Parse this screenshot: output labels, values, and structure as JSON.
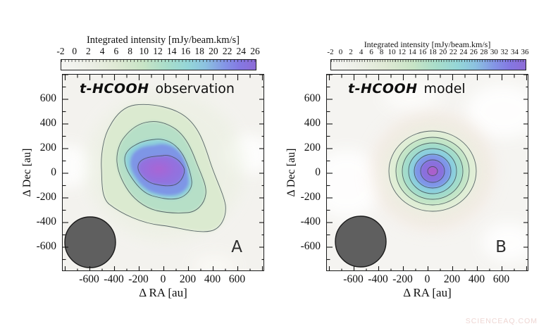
{
  "watermark": "SCIENCEAQ.COM",
  "chart_data": [
    {
      "type": "heatmap",
      "panel_label": "A",
      "title": "t-HCOOH observation",
      "title_molecule": "t-HCOOH",
      "title_kind": "observation",
      "colorbar_label": "Integrated intensity [mJy/beam.km/s]",
      "colorbar_ticks": [
        -2,
        0,
        2,
        4,
        6,
        8,
        10,
        12,
        14,
        16,
        18,
        20,
        22,
        24,
        26
      ],
      "colorbar_range": [
        -2,
        26
      ],
      "xlabel": "Δ RA [au]",
      "ylabel": "Δ Dec [au]",
      "xticks": [
        -600,
        -400,
        -200,
        0,
        200,
        400,
        600
      ],
      "yticks": [
        600,
        400,
        200,
        0,
        -200,
        -400,
        -600
      ],
      "xlim": [
        -820,
        820
      ],
      "ylim": [
        -820,
        820
      ],
      "grid": false,
      "legend": "none",
      "peak_value_est": 26,
      "peak_position_au": [
        0,
        40
      ],
      "source_extent_au": {
        "ra": [
          -450,
          520
        ],
        "dec": [
          -380,
          540
        ]
      },
      "morphology": "elongated irregular emission blob tilted NE-SW with tail extending to the south-east",
      "contour_levels_est": [
        4,
        9,
        14,
        19
      ],
      "beam_ellipse": {
        "center_au": [
          -580,
          -560
        ],
        "radius_au": 200,
        "color": "#5f5f5f"
      }
    },
    {
      "type": "heatmap",
      "panel_label": "B",
      "title": "t-HCOOH model",
      "title_molecule": "t-HCOOH",
      "title_kind": "model",
      "colorbar_label": "Integrated intensity [mJy/beam.km/s]",
      "colorbar_ticks": [
        -2,
        0,
        2,
        4,
        6,
        8,
        10,
        12,
        14,
        16,
        18,
        20,
        22,
        24,
        26,
        28,
        30,
        32,
        34,
        36
      ],
      "colorbar_range": [
        -2,
        36
      ],
      "xlabel": "Δ RA [au]",
      "ylabel": "Δ Dec [au]",
      "xticks": [
        -600,
        -400,
        -200,
        0,
        200,
        400,
        600
      ],
      "yticks": [
        600,
        400,
        200,
        0,
        -200,
        -400,
        -600
      ],
      "xlim": [
        -820,
        820
      ],
      "ylim": [
        -820,
        820
      ],
      "grid": false,
      "legend": "none",
      "peak_value_est": 36,
      "peak_position_au": [
        50,
        0
      ],
      "source_extent_au": {
        "ra": [
          -300,
          400
        ],
        "dec": [
          -330,
          330
        ]
      },
      "morphology": "compact, nearly circularly symmetric source with concentric contour rings",
      "contour_levels_est": [
        4,
        9,
        14,
        19,
        24,
        29,
        34
      ],
      "beam_ellipse": {
        "center_au": [
          -570,
          -555
        ],
        "radius_au": 200,
        "color": "#5f5f5f"
      }
    }
  ]
}
